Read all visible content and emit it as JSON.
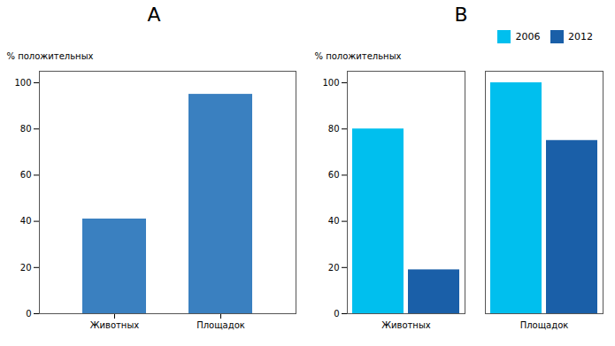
{
  "chart_data": [
    {
      "type": "bar",
      "title": "A",
      "categories": [
        "Животных",
        "Площадок"
      ],
      "values": [
        41,
        95
      ],
      "color": "#3A80C0",
      "ylabel": "% положительных",
      "ylim": [
        0,
        105
      ],
      "yticks": [
        0,
        20,
        40,
        60,
        80,
        100
      ]
    },
    {
      "type": "bar",
      "title": "B",
      "categories": [
        "Животных",
        "Площадок"
      ],
      "series": [
        {
          "name": "2006",
          "color": "#00BFEE",
          "values": [
            80,
            100
          ]
        },
        {
          "name": "2012",
          "color": "#1A5FA8",
          "values": [
            19,
            75
          ]
        }
      ],
      "ylabel": "% положительных",
      "ylim": [
        0,
        105
      ],
      "yticks": [
        0,
        20,
        40,
        60,
        80,
        100
      ],
      "legend": "upper right"
    }
  ]
}
